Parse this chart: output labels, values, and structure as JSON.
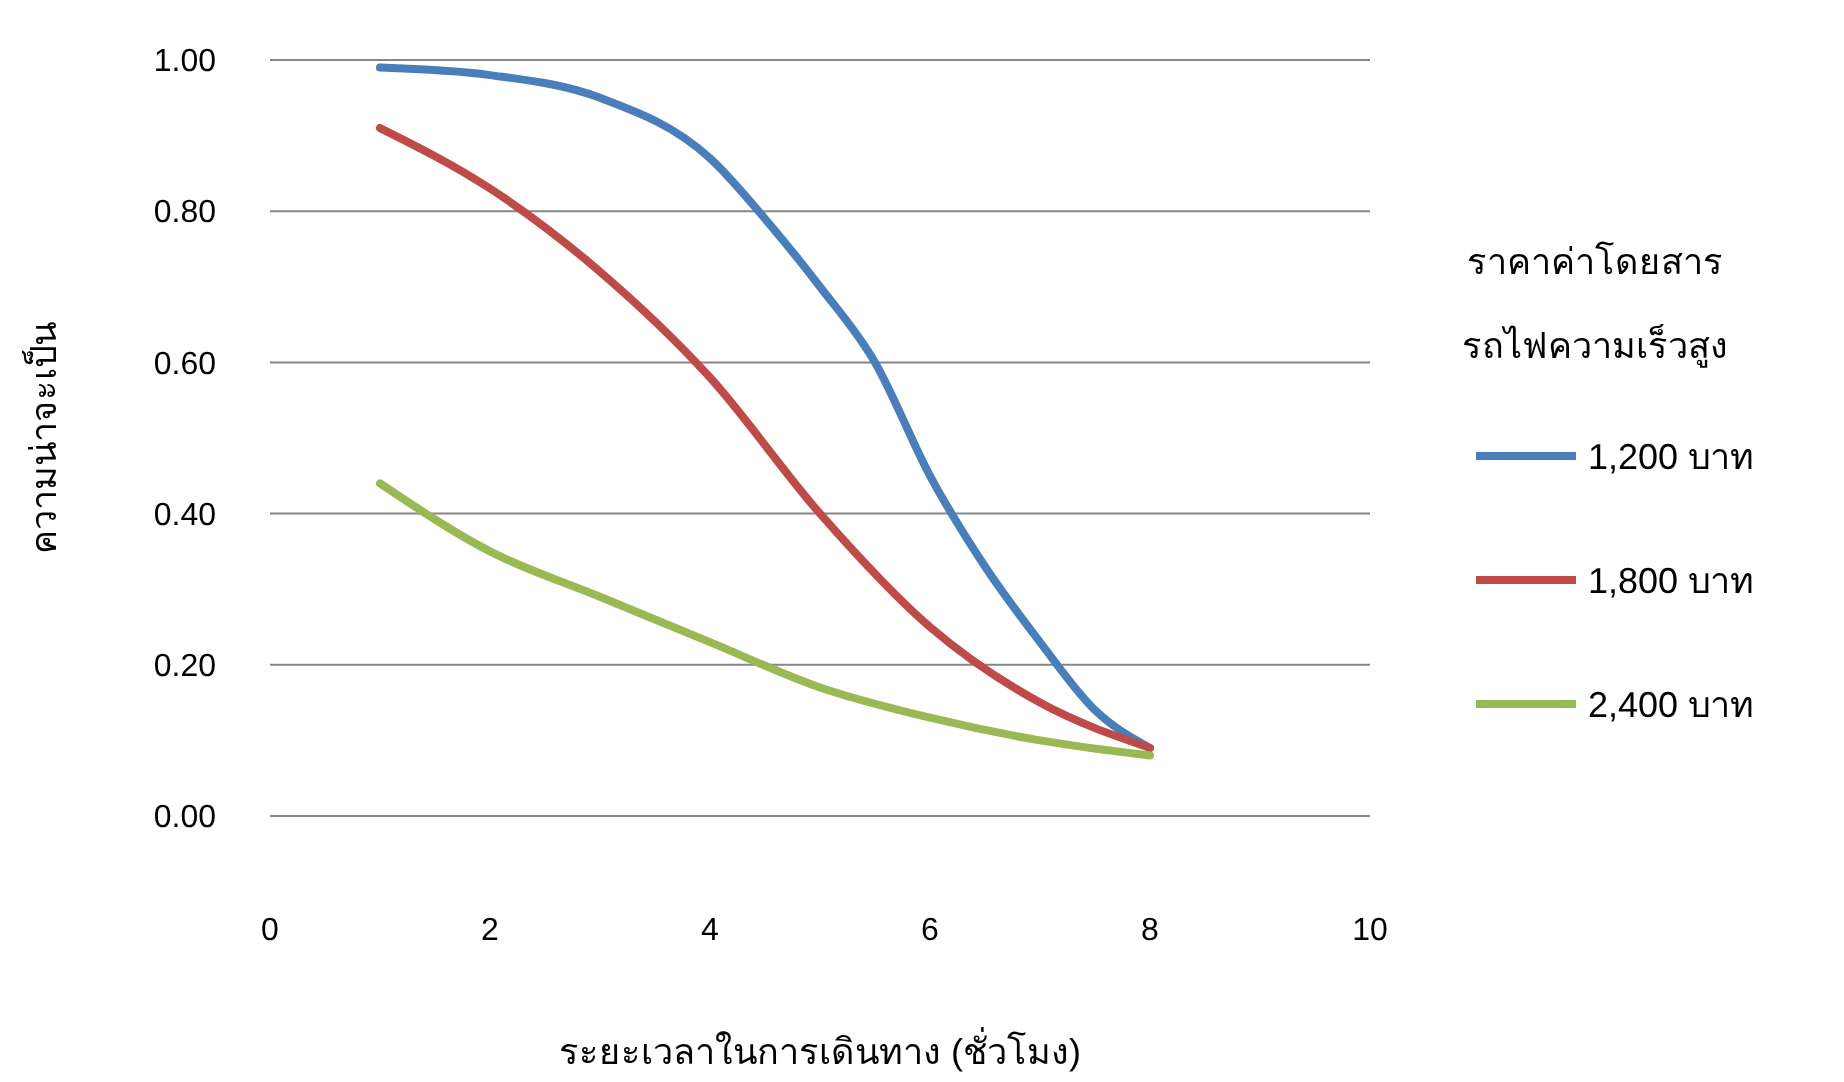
{
  "chart_data": {
    "type": "line",
    "xlabel": "ระยะเวลาในการเดินทาง (ชั่วโมง)",
    "ylabel": "ความน่าจะเป็น",
    "legend_title": "ราคาค่าโดยสารรถไฟความเร็วสูง",
    "xlim": [
      0,
      10
    ],
    "xticks": [
      0,
      2,
      4,
      6,
      8,
      10
    ],
    "ylim": [
      0,
      1
    ],
    "yticks": [
      {
        "value": 0,
        "label": "0.00"
      },
      {
        "value": 0.2,
        "label": "0.20"
      },
      {
        "value": 0.4,
        "label": "0.40"
      },
      {
        "value": 0.6,
        "label": "0.60"
      },
      {
        "value": 0.8,
        "label": "0.80"
      },
      {
        "value": 1,
        "label": "1.00"
      }
    ],
    "grid": "y",
    "legend": "right",
    "marker": "none",
    "line_style": "solid",
    "series": [
      {
        "name": "1,200 บาท",
        "color": "#4a7ebb",
        "x": [
          1,
          2,
          3,
          4,
          4.5,
          5,
          5.5,
          6,
          6.5,
          7,
          7.5,
          8
        ],
        "values": [
          0.99,
          0.98,
          0.95,
          0.87,
          0.79,
          0.7,
          0.6,
          0.45,
          0.33,
          0.23,
          0.14,
          0.09
        ]
      },
      {
        "name": "1,800 บาท",
        "color": "#be4b48",
        "x": [
          1,
          2,
          3,
          4,
          5,
          6,
          7,
          8
        ],
        "values": [
          0.91,
          0.83,
          0.72,
          0.58,
          0.4,
          0.25,
          0.15,
          0.09
        ]
      },
      {
        "name": "2,400 บาท",
        "color": "#98b954",
        "x": [
          1,
          2,
          3,
          4,
          5,
          6,
          7,
          8
        ],
        "values": [
          0.44,
          0.35,
          0.29,
          0.23,
          0.17,
          0.13,
          0.1,
          0.08
        ]
      }
    ]
  }
}
